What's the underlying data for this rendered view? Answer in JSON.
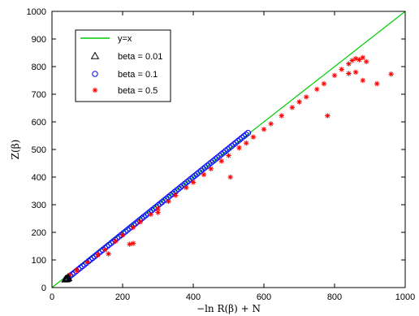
{
  "chart_data": {
    "type": "scatter",
    "xlabel": "−ln R(β) + N",
    "ylabel": "Z(β)",
    "xlim": [
      0,
      1000
    ],
    "ylim": [
      0,
      1000
    ],
    "xticks": [
      0,
      200,
      400,
      600,
      800,
      1000
    ],
    "yticks": [
      0,
      100,
      200,
      300,
      400,
      500,
      600,
      700,
      800,
      900,
      1000
    ],
    "grid": false,
    "legend_position": "top-left",
    "colors": {
      "reference_line": "#00cc00",
      "beta_001": "#000000",
      "beta_01": "#0000ff",
      "beta_05": "#ff0000",
      "axes": "#000000",
      "background": "#ffffff"
    },
    "reference_line": {
      "name": "y=x",
      "x": [
        0,
        1000
      ],
      "y": [
        0,
        1000
      ]
    },
    "series": [
      {
        "name": "beta = 0.01",
        "marker": "triangle",
        "points": [
          [
            38,
            30
          ],
          [
            40,
            31
          ],
          [
            42,
            32
          ],
          [
            44,
            34
          ],
          [
            46,
            35
          ]
        ]
      },
      {
        "name": "beta = 0.1",
        "marker": "circle",
        "range": {
          "x_start": 40,
          "x_end": 555,
          "y_start": 30,
          "y_end": 560
        }
      },
      {
        "name": "beta = 0.5",
        "marker": "star",
        "points": [
          [
            50,
            46
          ],
          [
            70,
            62
          ],
          [
            100,
            92
          ],
          [
            130,
            118
          ],
          [
            150,
            137
          ],
          [
            180,
            168
          ],
          [
            200,
            190
          ],
          [
            230,
            218
          ],
          [
            250,
            238
          ],
          [
            280,
            265
          ],
          [
            300,
            285
          ],
          [
            330,
            312
          ],
          [
            350,
            334
          ],
          [
            380,
            362
          ],
          [
            400,
            381
          ],
          [
            430,
            409
          ],
          [
            450,
            430
          ],
          [
            480,
            458
          ],
          [
            500,
            478
          ],
          [
            530,
            506
          ],
          [
            550,
            523
          ],
          [
            570,
            545
          ],
          [
            600,
            573
          ],
          [
            620,
            593
          ],
          [
            650,
            622
          ],
          [
            680,
            652
          ],
          [
            700,
            672
          ],
          [
            720,
            690
          ],
          [
            750,
            718
          ],
          [
            770,
            738
          ],
          [
            800,
            768
          ],
          [
            820,
            790
          ],
          [
            840,
            810
          ],
          [
            850,
            822
          ],
          [
            860,
            829
          ],
          [
            870,
            825
          ],
          [
            880,
            833
          ],
          [
            890,
            818
          ],
          [
            840,
            775
          ],
          [
            780,
            622
          ],
          [
            860,
            780
          ],
          [
            880,
            750
          ],
          [
            920,
            738
          ],
          [
            960,
            773
          ],
          [
            505,
            400
          ],
          [
            300,
            272
          ],
          [
            160,
            122
          ],
          [
            220,
            157
          ],
          [
            230,
            160
          ]
        ]
      }
    ]
  }
}
